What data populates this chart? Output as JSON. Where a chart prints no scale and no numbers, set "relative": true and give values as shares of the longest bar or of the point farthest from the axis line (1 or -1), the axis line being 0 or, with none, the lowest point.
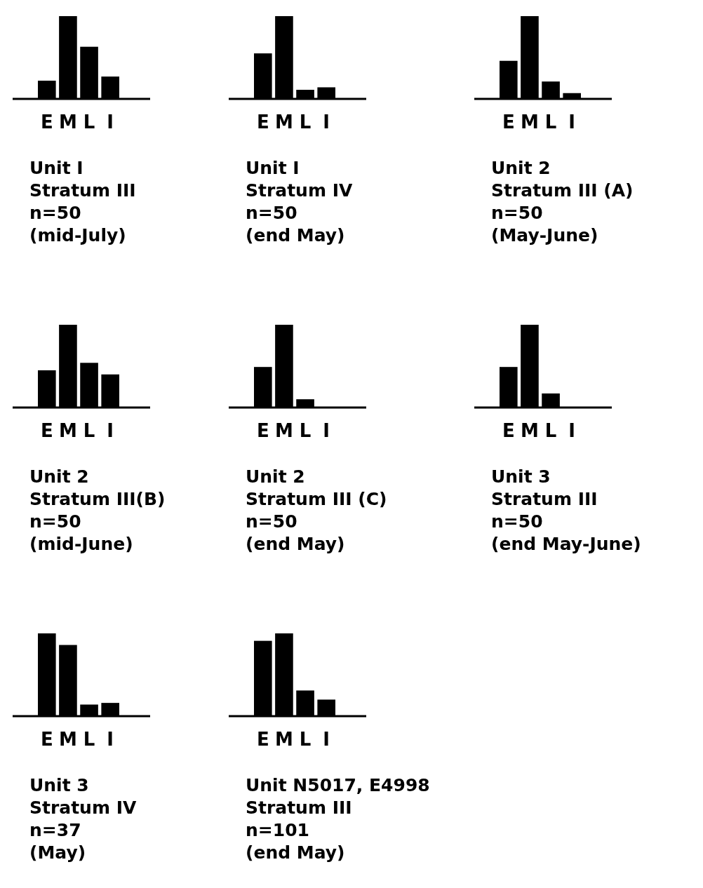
{
  "chart_data": [
    {
      "type": "bar",
      "relative": true,
      "color": "#000000",
      "categories": [
        "E",
        "M",
        "L",
        "I"
      ],
      "values": [
        0.22,
        1,
        0.63,
        0.27
      ],
      "title": "Unit I",
      "subtitle": "Stratum III",
      "annotations": [
        "n=50",
        "(mid-July)"
      ]
    },
    {
      "type": "bar",
      "relative": true,
      "color": "#000000",
      "categories": [
        "E",
        "M",
        "L",
        "I"
      ],
      "values": [
        0.55,
        1,
        0.11,
        0.14
      ],
      "title": "Unit I",
      "subtitle": "Stratum IV",
      "annotations": [
        "n=50",
        "(end May)"
      ]
    },
    {
      "type": "bar",
      "relative": true,
      "color": "#000000",
      "categories": [
        "E",
        "M",
        "L",
        "I"
      ],
      "values": [
        0.46,
        1,
        0.21,
        0.07
      ],
      "title": "Unit 2",
      "subtitle": "Stratum III (A)",
      "annotations": [
        "n=50",
        "(May-June)"
      ]
    },
    {
      "type": "bar",
      "relative": true,
      "color": "#000000",
      "categories": [
        "E",
        "M",
        "L",
        "I"
      ],
      "values": [
        0.45,
        1,
        0.54,
        0.4
      ],
      "title": "Unit 2",
      "subtitle": "Stratum III(B)",
      "annotations": [
        "n=50",
        "(mid-June)"
      ]
    },
    {
      "type": "bar",
      "relative": true,
      "color": "#000000",
      "categories": [
        "E",
        "M",
        "L",
        "I"
      ],
      "values": [
        0.49,
        1,
        0.1,
        0
      ],
      "title": "Unit 2",
      "subtitle": "Stratum III (C)",
      "annotations": [
        "n=50",
        "(end May)"
      ]
    },
    {
      "type": "bar",
      "relative": true,
      "color": "#000000",
      "categories": [
        "E",
        "M",
        "L",
        "I"
      ],
      "values": [
        0.49,
        1,
        0.17,
        0
      ],
      "title": "Unit 3",
      "subtitle": "Stratum III",
      "annotations": [
        "n=50",
        "(end May-June)"
      ]
    },
    {
      "type": "bar",
      "relative": true,
      "color": "#000000",
      "categories": [
        "E",
        "M",
        "L",
        "I"
      ],
      "values": [
        1,
        0.86,
        0.14,
        0.16
      ],
      "title": "Unit 3",
      "subtitle": "Stratum IV",
      "annotations": [
        "n=37",
        "(May)"
      ]
    },
    {
      "type": "bar",
      "relative": true,
      "color": "#000000",
      "categories": [
        "E",
        "M",
        "L",
        "I"
      ],
      "values": [
        0.91,
        1,
        0.31,
        0.2
      ],
      "title": "Unit N5017, E4998",
      "subtitle": "Stratum III",
      "annotations": [
        "n=101",
        "(end May)"
      ]
    }
  ]
}
